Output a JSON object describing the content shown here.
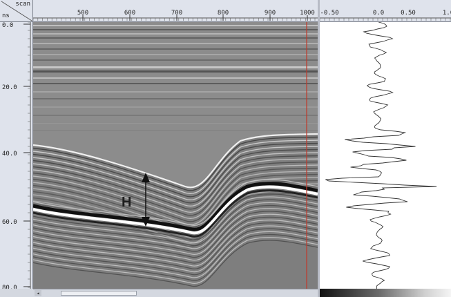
{
  "corner": {
    "scan_label": "scan",
    "ms_label": "ns"
  },
  "top_axis": {
    "ticks": [
      "500",
      "600",
      "700",
      "800",
      "900",
      "1000"
    ]
  },
  "left_axis": {
    "ticks": [
      "0.0",
      "20.0",
      "40.0",
      "60.0",
      "80.0"
    ]
  },
  "trace_axis": {
    "ticks": [
      "-0.50",
      "0.0",
      "0.50",
      "1.0"
    ]
  },
  "annotation": {
    "label": "H"
  },
  "colors": {
    "ruler_bg": "#dfe3ec",
    "cursor_line": "#c0392b",
    "radargram_bg": "#8a8a8a",
    "trace_line": "#333333"
  },
  "icons": {
    "scroll_left": "arrow-left-icon"
  },
  "scroll_arrow_glyph": "◂"
}
